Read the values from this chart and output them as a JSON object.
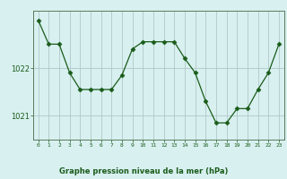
{
  "hours": [
    0,
    1,
    2,
    3,
    4,
    5,
    6,
    7,
    8,
    9,
    10,
    11,
    12,
    13,
    14,
    15,
    16,
    17,
    18,
    19,
    20,
    21,
    22,
    23
  ],
  "pressure": [
    1023.0,
    1022.5,
    1022.5,
    1021.9,
    1021.55,
    1021.55,
    1021.55,
    1021.55,
    1021.85,
    1022.4,
    1022.55,
    1022.55,
    1022.55,
    1022.55,
    1022.2,
    1021.9,
    1021.3,
    1020.85,
    1020.85,
    1021.15,
    1021.15,
    1021.55,
    1021.9,
    1022.5
  ],
  "line_color": "#1a5c1a",
  "marker": "D",
  "marker_size": 2.5,
  "bg_color": "#d8f0f0",
  "grid_color": "#b0c8c8",
  "xlabel": "Graphe pression niveau de la mer (hPa)",
  "xlabel_color": "#1a5c1a",
  "tick_color": "#1a5c1a",
  "axis_color": "#5c7a5c",
  "ylim": [
    1020.5,
    1023.2
  ],
  "yticks": [
    1021,
    1022
  ],
  "xlim": [
    -0.5,
    23.5
  ]
}
